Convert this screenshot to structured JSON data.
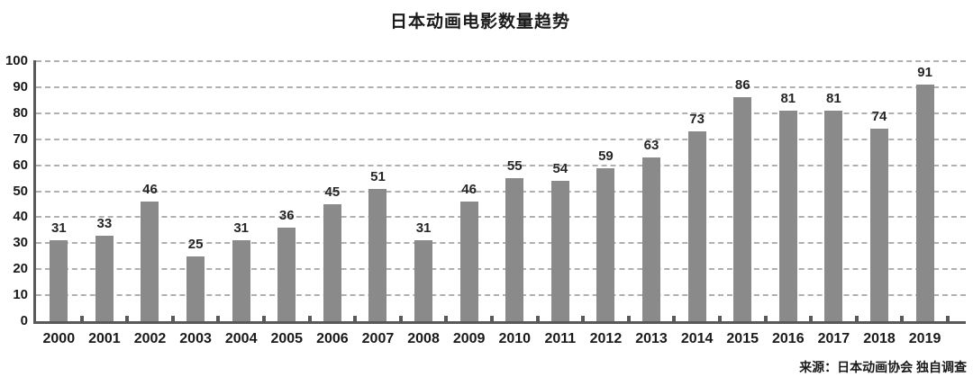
{
  "title": "日本动画电影数量趋势",
  "source_note": "来源：日本动画协会 独自调查",
  "chart_data": {
    "type": "bar",
    "title": "日本动画电影数量趋势",
    "categories": [
      "2000",
      "2001",
      "2002",
      "2003",
      "2004",
      "2005",
      "2006",
      "2007",
      "2008",
      "2009",
      "2010",
      "2011",
      "2012",
      "2013",
      "2014",
      "2015",
      "2016",
      "2017",
      "2018",
      "2019"
    ],
    "values": [
      31,
      33,
      46,
      25,
      31,
      36,
      45,
      51,
      31,
      46,
      55,
      54,
      59,
      63,
      73,
      86,
      81,
      81,
      74,
      91
    ],
    "xlabel": "",
    "ylabel": "",
    "ylim": [
      0,
      100
    ],
    "yticks": [
      0,
      10,
      20,
      30,
      40,
      50,
      60,
      70,
      80,
      90,
      100
    ],
    "grid": "horizontal-dashed",
    "legend_position": "none",
    "value_labels": true,
    "source": "来源：日本动画协会 独自调查"
  },
  "colors": {
    "background": "#ffffff",
    "bar": "#8a8a8a",
    "axis": "#595959",
    "gridline": "#b0b0b0",
    "text": "#1a1a1a"
  }
}
